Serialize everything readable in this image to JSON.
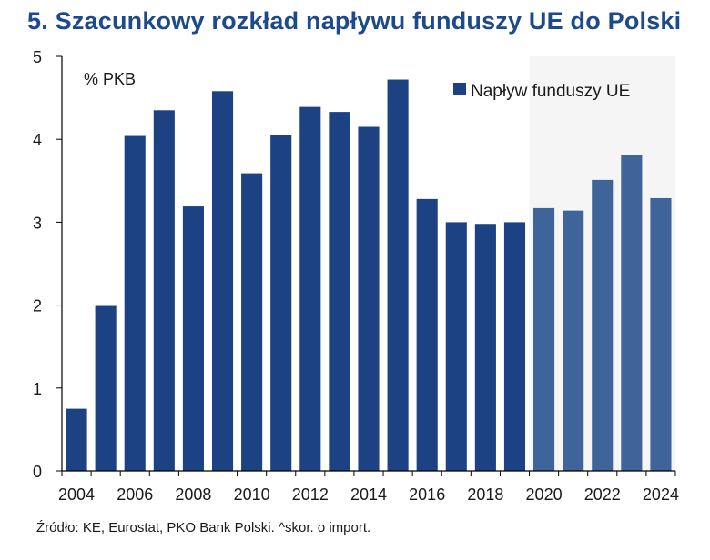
{
  "title": "5. Szacunkowy rozkład napływu funduszy UE do Polski",
  "source": "Źródło: KE, Eurostat, PKO Bank Polski. ^skor. o import.",
  "colors": {
    "bar": "#1c4283",
    "bar_forecast": "#3f6499",
    "forecast_bg": "#f5f5f5",
    "title": "#1d4a8a"
  },
  "chart_data": {
    "type": "bar",
    "title": "5. Szacunkowy rozkład napływu funduszy UE do Polski",
    "unit_label": "% PKB",
    "xlabel": "",
    "ylabel": "",
    "ylim": [
      0,
      5
    ],
    "yticks": [
      0,
      1,
      2,
      3,
      4,
      5
    ],
    "grid": false,
    "legend_position": "top-right",
    "forecast_from": 2020,
    "categories": [
      2004,
      2005,
      2006,
      2007,
      2008,
      2009,
      2010,
      2011,
      2012,
      2013,
      2014,
      2015,
      2016,
      2017,
      2018,
      2019,
      2020,
      2021,
      2022,
      2023,
      2024
    ],
    "xtick_labels": [
      "2004",
      "2006",
      "2008",
      "2010",
      "2012",
      "2014",
      "2016",
      "2018",
      "2020",
      "2022",
      "2024"
    ],
    "series": [
      {
        "name": "Napływ funduszy UE",
        "values": [
          0.75,
          1.99,
          4.04,
          4.35,
          3.19,
          4.58,
          3.59,
          4.05,
          4.39,
          4.33,
          4.15,
          4.72,
          3.28,
          3.0,
          2.98,
          3.0,
          3.17,
          3.14,
          3.51,
          3.81,
          3.29
        ]
      }
    ]
  }
}
